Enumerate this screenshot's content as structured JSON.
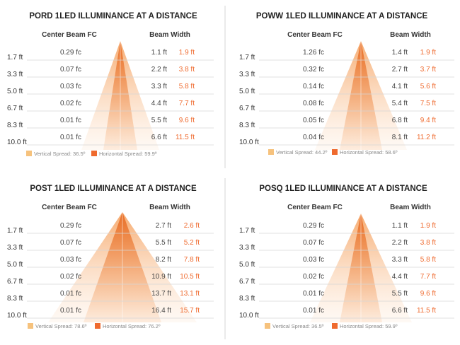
{
  "colors": {
    "vertical": "#f6c27d",
    "horizontal": "#ef6a2e",
    "cone_light": "#fde7d3",
    "cone_mid": "#f5a15f",
    "cone_dark": "#e8702a",
    "text": "#333333",
    "grid": "#d6d6d6"
  },
  "chart_data": [
    {
      "type": "table",
      "title": "PORD 1LED ILLUMINANCE AT A DISTANCE",
      "columns": [
        "Center Beam FC",
        "Beam Width"
      ],
      "distances": [
        "1.7 ft",
        "3.3 ft",
        "5.0 ft",
        "6.7 ft",
        "8.3 ft",
        "10.0 ft"
      ],
      "center_beam_fc": [
        "0.29 fc",
        "0.07 fc",
        "0.03 fc",
        "0.02 fc",
        "0.01 fc",
        "0.01 fc"
      ],
      "beam_width_vertical": [
        "1.1 ft",
        "2.2 ft",
        "3.3 ft",
        "4.4 ft",
        "5.5 ft",
        "6.6 ft"
      ],
      "beam_width_horizontal": [
        "1.9 ft",
        "3.8 ft",
        "5.8 ft",
        "7.7 ft",
        "9.6 ft",
        "11.5 ft"
      ],
      "legend": [
        "Vertical Spread: 36.5º",
        "Horizontal Spread: 59.9º"
      ]
    },
    {
      "type": "table",
      "title": "POWW 1LED ILLUMINANCE AT A DISTANCE",
      "columns": [
        "Center Beam FC",
        "Beam Width"
      ],
      "distances": [
        "1.7 ft",
        "3.3 ft",
        "5.0 ft",
        "6.7 ft",
        "8.3 ft",
        "10.0 ft"
      ],
      "center_beam_fc": [
        "1.26 fc",
        "0.32 fc",
        "0.14 fc",
        "0.08 fc",
        "0.05 fc",
        "0.04 fc"
      ],
      "beam_width_vertical": [
        "1.4 ft",
        "2.7 ft",
        "4.1 ft",
        "5.4 ft",
        "6.8 ft",
        "8.1 ft"
      ],
      "beam_width_horizontal": [
        "1.9 ft",
        "3.7 ft",
        "5.6 ft",
        "7.5 ft",
        "9.4 ft",
        "11.2 ft"
      ],
      "legend": [
        "Vertical Spread: 44.2º",
        "Horizontal Spread: 58.6º"
      ]
    },
    {
      "type": "table",
      "title": "POST 1LED ILLUMINANCE AT A DISTANCE",
      "columns": [
        "Center Beam FC",
        "Beam Width"
      ],
      "distances": [
        "1.7 ft",
        "3.3 ft",
        "5.0 ft",
        "6.7 ft",
        "8.3 ft",
        "10.0 ft"
      ],
      "center_beam_fc": [
        "0.29 fc",
        "0.07 fc",
        "0.03 fc",
        "0.02 fc",
        "0.01 fc",
        "0.01 fc"
      ],
      "beam_width_vertical": [
        "2.7 ft",
        "5.5 ft",
        "8.2 ft",
        "10.9 ft",
        "13.7 ft",
        "16.4 ft"
      ],
      "beam_width_horizontal": [
        "2.6 ft",
        "5.2 ft",
        "7.8 ft",
        "10.5 ft",
        "13.1 ft",
        "15.7 ft"
      ],
      "legend": [
        "Vertical Spread: 78.6º",
        "Horizontal Spread: 76.2º"
      ]
    },
    {
      "type": "table",
      "title": "POSQ 1LED ILLUMINANCE AT A DISTANCE",
      "columns": [
        "Center Beam FC",
        "Beam Width"
      ],
      "distances": [
        "1.7 ft",
        "3.3 ft",
        "5.0 ft",
        "6.7 ft",
        "8.3 ft",
        "10.0 ft"
      ],
      "center_beam_fc": [
        "0.29 fc",
        "0.07 fc",
        "0.03 fc",
        "0.02 fc",
        "0.01 fc",
        "0.01 fc"
      ],
      "beam_width_vertical": [
        "1.1 ft",
        "2.2 ft",
        "3.3 ft",
        "4.4 ft",
        "5.5 ft",
        "6.6 ft"
      ],
      "beam_width_horizontal": [
        "1.9 ft",
        "3.8 ft",
        "5.8 ft",
        "7.7 ft",
        "9.6 ft",
        "11.5 ft"
      ],
      "legend": [
        "Vertical Spread: 36.5º",
        "Horizontal Spread: 59.9º"
      ]
    }
  ]
}
